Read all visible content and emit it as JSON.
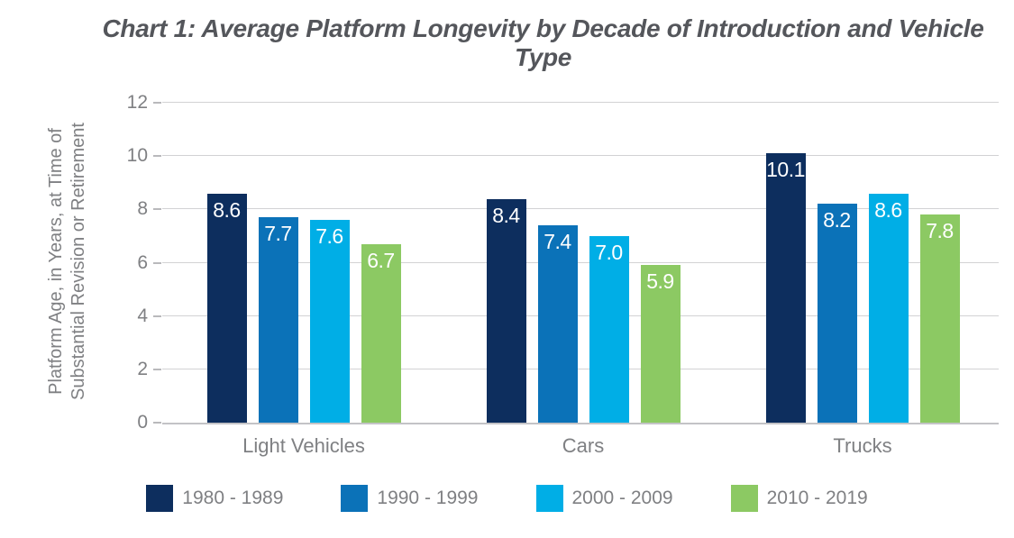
{
  "title": "Chart 1: Average Platform Longevity by Decade of Introduction and Vehicle Type",
  "chart_data": {
    "type": "bar",
    "categories": [
      "Light Vehicles",
      "Cars",
      "Trucks"
    ],
    "series": [
      {
        "name": "1980 - 1989",
        "color": "#0d2e5e",
        "values": [
          8.6,
          8.4,
          10.1
        ]
      },
      {
        "name": "1990 - 1999",
        "color": "#0b72b8",
        "values": [
          7.7,
          7.4,
          8.2
        ]
      },
      {
        "name": "2000 - 2009",
        "color": "#00aee6",
        "values": [
          7.6,
          7.0,
          8.6
        ]
      },
      {
        "name": "2010 - 2019",
        "color": "#8cc963",
        "values": [
          6.7,
          5.9,
          7.8
        ]
      }
    ],
    "ylabel_lines": [
      "Platform Age, in Years, at Time of",
      "Substantial Revision or Retirement"
    ],
    "ylim": [
      0,
      12
    ],
    "yticks": [
      0,
      2,
      4,
      6,
      8,
      10,
      12
    ],
    "grid": true,
    "legend_position": "bottom",
    "value_labels": true,
    "value_label_format": "1-decimal"
  },
  "colors": {
    "grid": "#d2d2d4",
    "axis": "#c3c3c6",
    "muted_text": "#7f8083",
    "title_text": "#54565b",
    "value_label_text": "#ffffff",
    "background": "#ffffff"
  }
}
